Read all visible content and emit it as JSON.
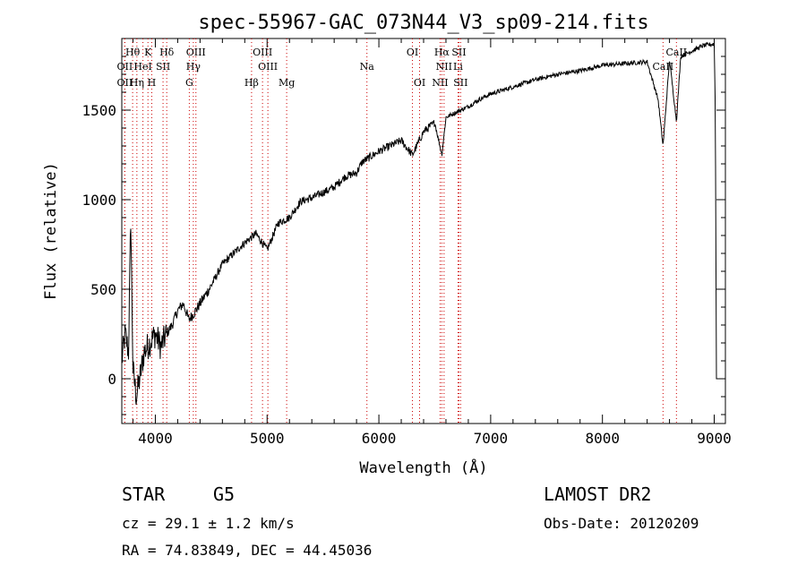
{
  "chart_data": {
    "type": "line",
    "title": "spec-55967-GAC_073N44_V3_sp09-214.fits",
    "xlabel": "Wavelength (Å)",
    "ylabel": "Flux (relative)",
    "xlim": [
      3700,
      9100
    ],
    "ylim": [
      -250,
      1900
    ],
    "x_ticks": [
      4000,
      5000,
      6000,
      7000,
      8000,
      9000
    ],
    "y_ticks": [
      0,
      500,
      1000,
      1500
    ],
    "x_tick_labels": [
      "4000",
      "5000",
      "6000",
      "7000",
      "8000",
      "9000"
    ],
    "y_tick_labels": [
      "0",
      "500",
      "1000",
      "1500"
    ],
    "grid": false,
    "series": [
      {
        "color": "#000000",
        "x": [
          3700,
          3730,
          3760,
          3780,
          3800,
          3830,
          3860,
          3900,
          3950,
          4000,
          4050,
          4100,
          4150,
          4200,
          4250,
          4300,
          4350,
          4400,
          4500,
          4600,
          4700,
          4800,
          4900,
          5000,
          5100,
          5200,
          5300,
          5400,
          5500,
          5600,
          5700,
          5800,
          5850,
          5900,
          5950,
          6000,
          6100,
          6200,
          6300,
          6400,
          6500,
          6563,
          6600,
          6700,
          6800,
          6900,
          7000,
          7200,
          7400,
          7600,
          7800,
          8000,
          8200,
          8400,
          8498,
          8542,
          8600,
          8662,
          8700,
          8800,
          8900,
          9000,
          9010,
          9020
        ],
        "y": [
          100,
          250,
          150,
          900,
          50,
          -100,
          0,
          150,
          200,
          250,
          180,
          250,
          300,
          380,
          420,
          330,
          370,
          420,
          520,
          640,
          700,
          760,
          810,
          720,
          870,
          900,
          990,
          1010,
          1040,
          1070,
          1130,
          1150,
          1210,
          1230,
          1250,
          1270,
          1300,
          1330,
          1250,
          1380,
          1430,
          1250,
          1460,
          1490,
          1520,
          1560,
          1590,
          1630,
          1670,
          1700,
          1720,
          1750,
          1760,
          1770,
          1560,
          1300,
          1780,
          1440,
          1800,
          1830,
          1860,
          1870,
          1500,
          0
        ]
      }
    ],
    "lines": [
      {
        "label": "Hθ",
        "wavelength": 3797,
        "row": 1
      },
      {
        "label": "K",
        "wavelength": 3934,
        "row": 1
      },
      {
        "label": "Hδ",
        "wavelength": 4102,
        "row": 1
      },
      {
        "label": "OIII",
        "wavelength": 4363,
        "row": 1
      },
      {
        "label": "OIII",
        "wavelength": 4959,
        "row": 1
      },
      {
        "label": "OI",
        "wavelength": 6300,
        "row": 1
      },
      {
        "label": "Hα",
        "wavelength": 6563,
        "row": 1
      },
      {
        "label": "SII",
        "wavelength": 6716,
        "row": 1
      },
      {
        "label": "CaII",
        "wavelength": 8662,
        "row": 1
      },
      {
        "label": "OII",
        "wavelength": 3727,
        "row": 2
      },
      {
        "label": "HeI",
        "wavelength": 3889,
        "row": 2
      },
      {
        "label": "SII",
        "wavelength": 4069,
        "row": 2
      },
      {
        "label": "Hγ",
        "wavelength": 4340,
        "row": 2
      },
      {
        "label": "OIII",
        "wavelength": 5007,
        "row": 2
      },
      {
        "label": "Na",
        "wavelength": 5893,
        "row": 2
      },
      {
        "label": "NII",
        "wavelength": 6583,
        "row": 2
      },
      {
        "label": "Li",
        "wavelength": 6708,
        "row": 2
      },
      {
        "label": "CaII",
        "wavelength": 8542,
        "row": 2
      },
      {
        "label": "OII",
        "wavelength": 3727,
        "row": 3
      },
      {
        "label": "Hη",
        "wavelength": 3835,
        "row": 3
      },
      {
        "label": "H",
        "wavelength": 3968,
        "row": 3
      },
      {
        "label": "G",
        "wavelength": 4304,
        "row": 3
      },
      {
        "label": "Hβ",
        "wavelength": 4861,
        "row": 3
      },
      {
        "label": "Mg",
        "wavelength": 5175,
        "row": 3
      },
      {
        "label": "OI",
        "wavelength": 6364,
        "row": 3
      },
      {
        "label": "NII",
        "wavelength": 6548,
        "row": 3
      },
      {
        "label": "SII",
        "wavelength": 6731,
        "row": 3
      }
    ],
    "line_color": "#cc0000"
  },
  "info": {
    "object_type": "STAR",
    "spectral_class": "G5",
    "survey": "LAMOST DR2",
    "redshift": "cz = 29.1 ± 1.2 km/s",
    "obs_date": "Obs-Date: 20120209",
    "coords": "RA =  74.83849, DEC =  44.45036"
  }
}
